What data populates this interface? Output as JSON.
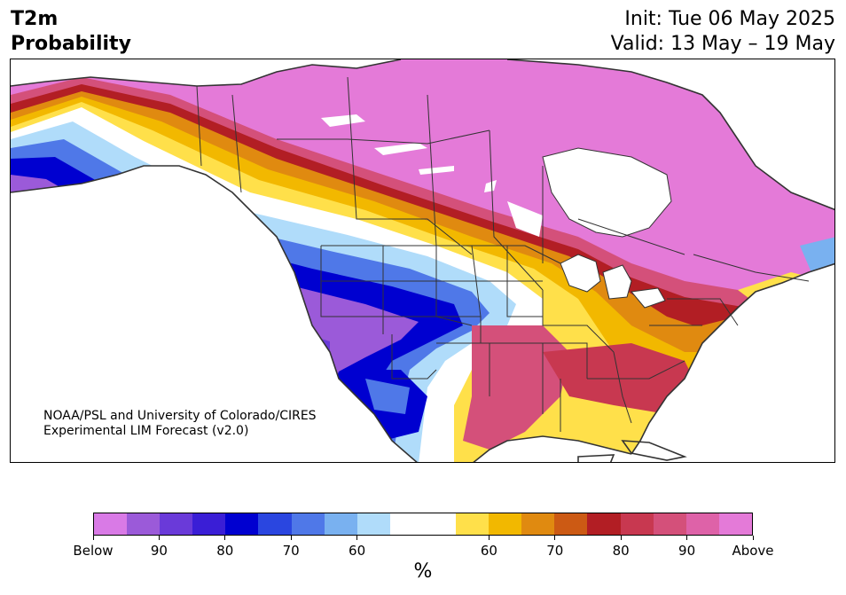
{
  "header": {
    "variable": "T2m",
    "product": "Probability",
    "init": "Init: Tue 06 May 2025",
    "valid": "Valid: 13 May – 19 May"
  },
  "credit": {
    "line1": "NOAA/PSL and University of Colorado/CIRES",
    "line2": "Experimental LIM Forecast (v2.0)"
  },
  "colorbar": {
    "units": "%",
    "colors": [
      "#d97ae6",
      "#9b5ad9",
      "#6a3ad9",
      "#3a1ed6",
      "#0000d0",
      "#2a46e0",
      "#4f78e8",
      "#79b1f0",
      "#b0dcfa",
      "#ffffff",
      "#ffffff",
      "#ffe04a",
      "#f2b800",
      "#e08a10",
      "#cc5a14",
      "#b21e24",
      "#c83850",
      "#d4507a",
      "#de62a8",
      "#e47ad8"
    ],
    "ticks": [
      {
        "label": "Below",
        "bin": 0
      },
      {
        "label": "90",
        "bin": 2
      },
      {
        "label": "80",
        "bin": 4
      },
      {
        "label": "70",
        "bin": 6
      },
      {
        "label": "60",
        "bin": 8
      },
      {
        "label": "60",
        "bin": 12
      },
      {
        "label": "70",
        "bin": 14
      },
      {
        "label": "80",
        "bin": 16
      },
      {
        "label": "90",
        "bin": 18
      },
      {
        "label": "Above",
        "bin": 20
      }
    ]
  },
  "map": {
    "land_color": "#ffffff",
    "border_color": "#333333"
  }
}
